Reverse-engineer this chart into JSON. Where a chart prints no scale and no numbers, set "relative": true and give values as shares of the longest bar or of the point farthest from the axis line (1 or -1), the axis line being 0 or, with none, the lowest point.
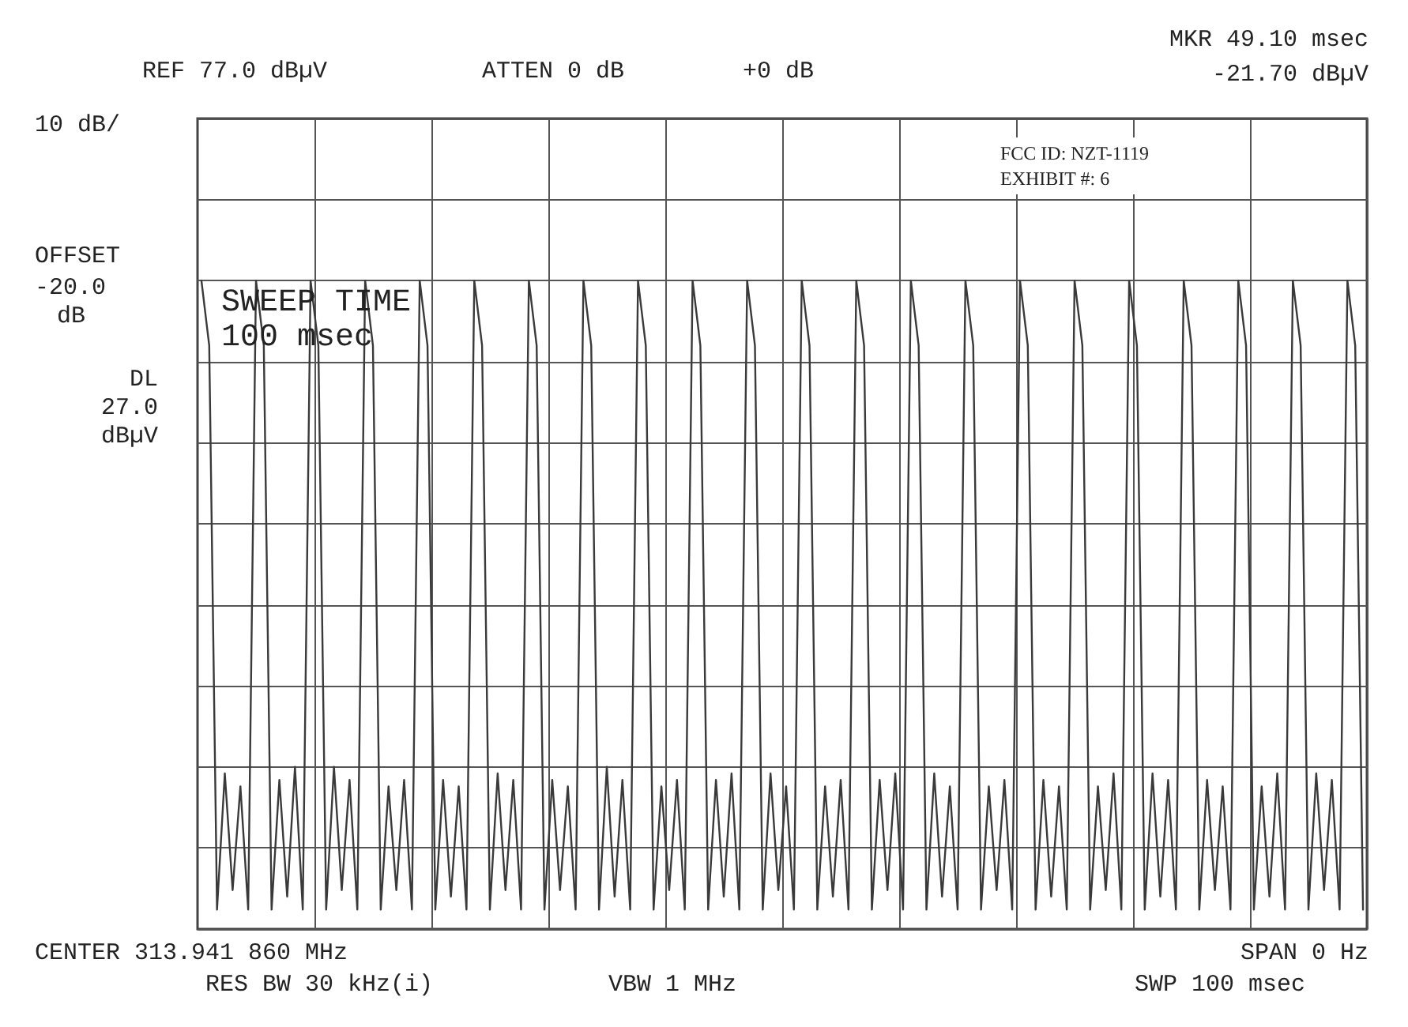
{
  "chart_data": {
    "type": "line",
    "relative": true,
    "grid": true,
    "marker": "none",
    "line_style": "solid",
    "categories": [
      null,
      null,
      null,
      null,
      null,
      null,
      null,
      null,
      null,
      null,
      null,
      null,
      null,
      null,
      null,
      null,
      null,
      null,
      null,
      null,
      null,
      null,
      null,
      null,
      null,
      null,
      null,
      null,
      null,
      null,
      null,
      null,
      null,
      null,
      null,
      null,
      null,
      null,
      null,
      null,
      null,
      null,
      null,
      null,
      null,
      null,
      null,
      null,
      null,
      null,
      null,
      null,
      null,
      null,
      null,
      null,
      null,
      null,
      null,
      null,
      null,
      null,
      null,
      null,
      null,
      null,
      null,
      null,
      null,
      null,
      null,
      null,
      null,
      null,
      null,
      null,
      null,
      null,
      null,
      null,
      null,
      null,
      null,
      null,
      null,
      null,
      null,
      null,
      null,
      null,
      null,
      null,
      null,
      null,
      null,
      null,
      null,
      null,
      null,
      null,
      null,
      null,
      null,
      null,
      null,
      null,
      null,
      null,
      null,
      null,
      null,
      null,
      null,
      null,
      null,
      null,
      null,
      null,
      null,
      null,
      null,
      null,
      null,
      null,
      null,
      null,
      null,
      null,
      null,
      null,
      null,
      null,
      null,
      null,
      null,
      null,
      null,
      null,
      null,
      null,
      null,
      null,
      null,
      null,
      null,
      null,
      null,
      null,
      null,
      null
    ],
    "series": [
      {
        "color": "#3a3a3a",
        "values": [
          1,
          0.9,
          0.03,
          0.24,
          0.06,
          0.22,
          0.03,
          1,
          0.9,
          0.03,
          0.23,
          0.05,
          0.25,
          0.03,
          1,
          0.9,
          0.03,
          0.25,
          0.06,
          0.23,
          0.03,
          1,
          0.9,
          0.03,
          0.22,
          0.06,
          0.23,
          0.03,
          1,
          0.9,
          0.03,
          0.23,
          0.05,
          0.22,
          0.03,
          1,
          0.9,
          0.03,
          0.24,
          0.06,
          0.23,
          0.03,
          1,
          0.9,
          0.03,
          0.23,
          0.06,
          0.22,
          0.03,
          1,
          0.9,
          0.03,
          0.25,
          0.05,
          0.23,
          0.03,
          1,
          0.9,
          0.03,
          0.22,
          0.06,
          0.23,
          0.03,
          1,
          0.9,
          0.03,
          0.23,
          0.05,
          0.24,
          0.03,
          1,
          0.9,
          0.03,
          0.24,
          0.06,
          0.22,
          0.03,
          1,
          0.9,
          0.03,
          0.22,
          0.05,
          0.23,
          0.03,
          1,
          0.9,
          0.03,
          0.23,
          0.06,
          0.24,
          0.03,
          1,
          0.9,
          0.03,
          0.24,
          0.05,
          0.22,
          0.03,
          1,
          0.9,
          0.03,
          0.22,
          0.06,
          0.23,
          0.03,
          1,
          0.9,
          0.03,
          0.23,
          0.05,
          0.22,
          0.03,
          1,
          0.9,
          0.03,
          0.22,
          0.06,
          0.24,
          0.03,
          1,
          0.9,
          0.03,
          0.24,
          0.05,
          0.23,
          0.03,
          1,
          0.9,
          0.03,
          0.23,
          0.06,
          0.22,
          0.03,
          1,
          0.9,
          0.03,
          0.22,
          0.05,
          0.24,
          0.03,
          1,
          0.9,
          0.03,
          0.24,
          0.06,
          0.23,
          0.03,
          1,
          0.9,
          0.03
        ]
      }
    ],
    "annotations": [
      "REF 77.0 dBµV",
      "ATTEN 0 dB",
      "+0 dB",
      "MKR 49.10 msec",
      "-21.70 dBµV",
      "10 dB/",
      "OFFSET",
      "-20.0",
      "dB",
      "DL",
      "27.0",
      "dBµV",
      "SWEEP TIME",
      "100 msec",
      "CENTER 313.941 860 MHz",
      "RES BW 30 kHz(i)",
      "VBW 1 MHz",
      "SPAN 0 Hz",
      "SWP 100 msec",
      "FCC ID: NZT-1119",
      "EXHIBIT #: 6"
    ]
  }
}
